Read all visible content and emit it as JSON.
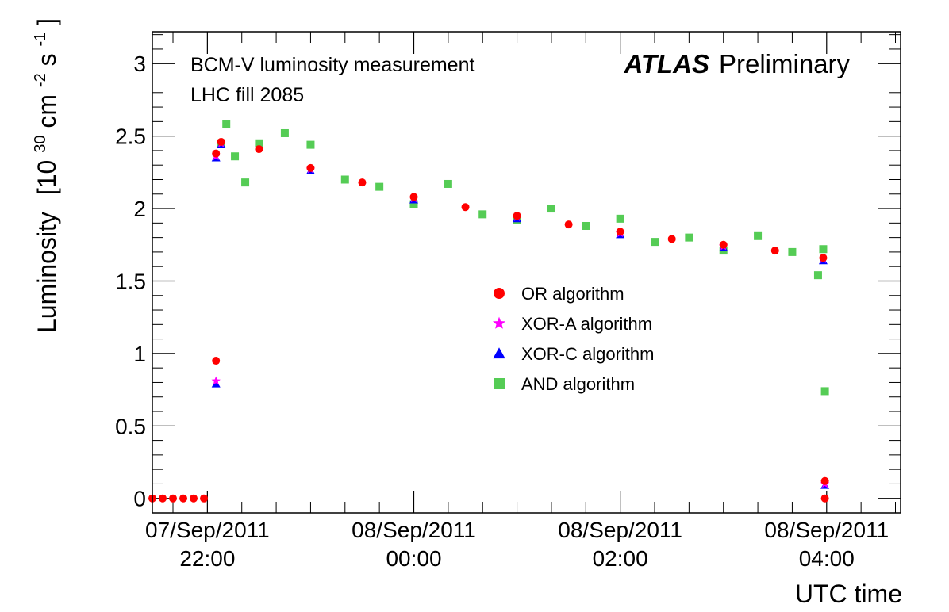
{
  "chart_data": {
    "type": "scatter",
    "title": "",
    "xlabel": "UTC time",
    "ylabel": "Luminosity",
    "ylabel_unit": {
      "prefix": "[10",
      "sup1": "30",
      "mid": " cm",
      "sup2": "-2",
      "mid2": "s",
      "sup3": "-1",
      "suffix": "]"
    },
    "annotations": {
      "measurement": "BCM-V luminosity measurement",
      "fill": "LHC fill 2085",
      "experiment": "ATLAS",
      "status": "Preliminary"
    },
    "ylim": [
      -0.1,
      3.22
    ],
    "xlim": [
      "2011-09-07 21:28",
      "2011-09-08 04:43"
    ],
    "x_major_ticks": [
      {
        "t": "2011-09-07 22:00",
        "date": "07/Sep/2011",
        "time": "22:00"
      },
      {
        "t": "2011-09-08 00:00",
        "date": "08/Sep/2011",
        "time": "00:00"
      },
      {
        "t": "2011-09-08 02:00",
        "date": "08/Sep/2011",
        "time": "02:00"
      },
      {
        "t": "2011-09-08 04:00",
        "date": "08/Sep/2011",
        "time": "04:00"
      }
    ],
    "y_ticks": [
      "0",
      "0.5",
      "1",
      "1.5",
      "2",
      "2.5",
      "3"
    ],
    "grid": false,
    "legend_position": "center-right",
    "series": [
      {
        "name": "OR algorithm",
        "marker": "circle",
        "color": "#ff0000",
        "points": [
          [
            "2011-09-07 21:28",
            0
          ],
          [
            "2011-09-07 21:34",
            0
          ],
          [
            "2011-09-07 21:40",
            0
          ],
          [
            "2011-09-07 21:46",
            0
          ],
          [
            "2011-09-07 21:52",
            0
          ],
          [
            "2011-09-07 21:58",
            0
          ],
          [
            "2011-09-07 22:05",
            0.95
          ],
          [
            "2011-09-07 22:05",
            2.38
          ],
          [
            "2011-09-07 22:08",
            2.46
          ],
          [
            "2011-09-07 22:30",
            2.41
          ],
          [
            "2011-09-07 23:00",
            2.28
          ],
          [
            "2011-09-07 23:30",
            2.18
          ],
          [
            "2011-09-08 00:00",
            2.08
          ],
          [
            "2011-09-08 00:30",
            2.01
          ],
          [
            "2011-09-08 01:00",
            1.95
          ],
          [
            "2011-09-08 01:30",
            1.89
          ],
          [
            "2011-09-08 02:00",
            1.84
          ],
          [
            "2011-09-08 02:30",
            1.79
          ],
          [
            "2011-09-08 03:00",
            1.75
          ],
          [
            "2011-09-08 03:30",
            1.71
          ],
          [
            "2011-09-08 03:58",
            1.66
          ],
          [
            "2011-09-08 03:59",
            0.12
          ],
          [
            "2011-09-08 03:59",
            0
          ]
        ]
      },
      {
        "name": "XOR-A algorithm",
        "marker": "star",
        "color": "#ff00ff",
        "points": [
          [
            "2011-09-07 22:05",
            0.81
          ],
          [
            "2011-09-07 22:05",
            2.36
          ],
          [
            "2011-09-07 22:08",
            2.45
          ],
          [
            "2011-09-07 23:00",
            2.27
          ],
          [
            "2011-09-08 00:00",
            2.07
          ],
          [
            "2011-09-08 01:00",
            1.94
          ],
          [
            "2011-09-08 02:00",
            1.83
          ],
          [
            "2011-09-08 03:00",
            1.74
          ],
          [
            "2011-09-08 03:58",
            1.65
          ],
          [
            "2011-09-08 03:59",
            0.1
          ]
        ]
      },
      {
        "name": "XOR-C algorithm",
        "marker": "triangle",
        "color": "#0000ff",
        "points": [
          [
            "2011-09-07 22:05",
            0.79
          ],
          [
            "2011-09-07 22:05",
            2.35
          ],
          [
            "2011-09-07 22:08",
            2.44
          ],
          [
            "2011-09-07 23:00",
            2.26
          ],
          [
            "2011-09-08 00:00",
            2.06
          ],
          [
            "2011-09-08 01:00",
            1.93
          ],
          [
            "2011-09-08 02:00",
            1.82
          ],
          [
            "2011-09-08 03:00",
            1.73
          ],
          [
            "2011-09-08 03:58",
            1.64
          ],
          [
            "2011-09-08 03:59",
            0.09
          ]
        ]
      },
      {
        "name": "AND algorithm",
        "marker": "square",
        "color": "#55cc55",
        "points": [
          [
            "2011-09-07 22:08",
            2.45
          ],
          [
            "2011-09-07 22:11",
            2.58
          ],
          [
            "2011-09-07 22:16",
            2.36
          ],
          [
            "2011-09-07 22:22",
            2.18
          ],
          [
            "2011-09-07 22:30",
            2.45
          ],
          [
            "2011-09-07 22:45",
            2.52
          ],
          [
            "2011-09-07 23:00",
            2.44
          ],
          [
            "2011-09-07 23:20",
            2.2
          ],
          [
            "2011-09-07 23:40",
            2.15
          ],
          [
            "2011-09-08 00:00",
            2.03
          ],
          [
            "2011-09-08 00:20",
            2.17
          ],
          [
            "2011-09-08 00:40",
            1.96
          ],
          [
            "2011-09-08 01:00",
            1.92
          ],
          [
            "2011-09-08 01:20",
            2.0
          ],
          [
            "2011-09-08 01:40",
            1.88
          ],
          [
            "2011-09-08 02:00",
            1.93
          ],
          [
            "2011-09-08 02:20",
            1.77
          ],
          [
            "2011-09-08 02:40",
            1.8
          ],
          [
            "2011-09-08 03:00",
            1.71
          ],
          [
            "2011-09-08 03:20",
            1.81
          ],
          [
            "2011-09-08 03:40",
            1.7
          ],
          [
            "2011-09-08 03:55",
            1.54
          ],
          [
            "2011-09-08 03:58",
            1.72
          ],
          [
            "2011-09-08 03:59",
            0.74
          ]
        ]
      }
    ]
  }
}
